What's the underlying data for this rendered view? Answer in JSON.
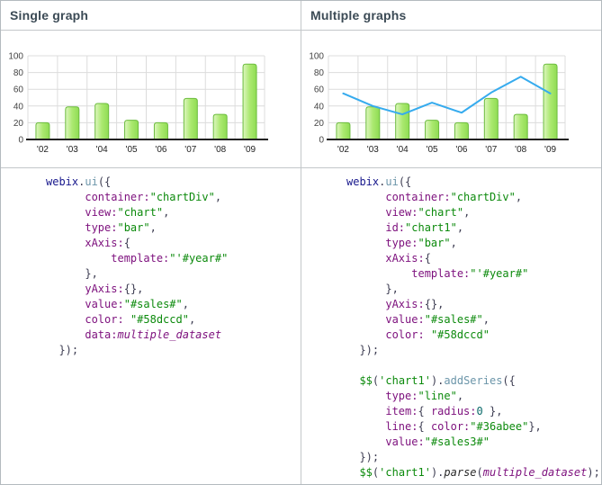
{
  "panels": [
    {
      "title": "Single graph",
      "code": [
        [
          [
            "kwd",
            "webix"
          ],
          [
            "pun",
            "."
          ],
          [
            "meth",
            "ui"
          ],
          [
            "pun",
            "({"
          ]
        ],
        [
          [
            "pln",
            "      "
          ],
          [
            "prop",
            "container:"
          ],
          [
            "str",
            "\"chartDiv\""
          ],
          [
            "pun",
            ","
          ]
        ],
        [
          [
            "pln",
            "      "
          ],
          [
            "prop",
            "view:"
          ],
          [
            "str",
            "\"chart\""
          ],
          [
            "pun",
            ","
          ]
        ],
        [
          [
            "pln",
            "      "
          ],
          [
            "prop",
            "type:"
          ],
          [
            "str",
            "\"bar\""
          ],
          [
            "pun",
            ","
          ]
        ],
        [
          [
            "pln",
            "      "
          ],
          [
            "prop",
            "xAxis:"
          ],
          [
            "pun",
            "{"
          ]
        ],
        [
          [
            "pln",
            "          "
          ],
          [
            "prop",
            "template:"
          ],
          [
            "str",
            "\"'#year#\""
          ]
        ],
        [
          [
            "pln",
            "      "
          ],
          [
            "pun",
            "},"
          ]
        ],
        [
          [
            "pln",
            "      "
          ],
          [
            "prop",
            "yAxis:"
          ],
          [
            "pun",
            "{},"
          ]
        ],
        [
          [
            "pln",
            "      "
          ],
          [
            "prop",
            "value:"
          ],
          [
            "str",
            "\"#sales#\""
          ],
          [
            "pun",
            ","
          ]
        ],
        [
          [
            "pln",
            "      "
          ],
          [
            "prop",
            "color: "
          ],
          [
            "str",
            "\"#58dccd\""
          ],
          [
            "pun",
            ","
          ]
        ],
        [
          [
            "pln",
            "      "
          ],
          [
            "prop",
            "data:"
          ],
          [
            "var",
            "multiple_dataset"
          ]
        ],
        [
          [
            "pln",
            "  "
          ],
          [
            "pun",
            "});"
          ]
        ]
      ]
    },
    {
      "title": "Multiple graphs",
      "code": [
        [
          [
            "kwd",
            "webix"
          ],
          [
            "pun",
            "."
          ],
          [
            "meth",
            "ui"
          ],
          [
            "pun",
            "({"
          ]
        ],
        [
          [
            "pln",
            "      "
          ],
          [
            "prop",
            "container:"
          ],
          [
            "str",
            "\"chartDiv\""
          ],
          [
            "pun",
            ","
          ]
        ],
        [
          [
            "pln",
            "      "
          ],
          [
            "prop",
            "view:"
          ],
          [
            "str",
            "\"chart\""
          ],
          [
            "pun",
            ","
          ]
        ],
        [
          [
            "pln",
            "      "
          ],
          [
            "prop",
            "id:"
          ],
          [
            "str",
            "\"chart1\""
          ],
          [
            "pun",
            ","
          ]
        ],
        [
          [
            "pln",
            "      "
          ],
          [
            "prop",
            "type:"
          ],
          [
            "str",
            "\"bar\""
          ],
          [
            "pun",
            ","
          ]
        ],
        [
          [
            "pln",
            "      "
          ],
          [
            "prop",
            "xAxis:"
          ],
          [
            "pun",
            "{"
          ]
        ],
        [
          [
            "pln",
            "          "
          ],
          [
            "prop",
            "template:"
          ],
          [
            "str",
            "\"'#year#\""
          ]
        ],
        [
          [
            "pln",
            "      "
          ],
          [
            "pun",
            "},"
          ]
        ],
        [
          [
            "pln",
            "      "
          ],
          [
            "prop",
            "yAxis:"
          ],
          [
            "pun",
            "{},"
          ]
        ],
        [
          [
            "pln",
            "      "
          ],
          [
            "prop",
            "value:"
          ],
          [
            "str",
            "\"#sales#\""
          ],
          [
            "pun",
            ","
          ]
        ],
        [
          [
            "pln",
            "      "
          ],
          [
            "prop",
            "color: "
          ],
          [
            "str",
            "\"#58dccd\""
          ]
        ],
        [
          [
            "pln",
            "  "
          ],
          [
            "pun",
            "});"
          ]
        ],
        [],
        [
          [
            "pln",
            "  "
          ],
          [
            "str",
            "$$"
          ],
          [
            "pun",
            "("
          ],
          [
            "str",
            "'chart1'"
          ],
          [
            "pun",
            ")."
          ],
          [
            "meth",
            "addSeries"
          ],
          [
            "pun",
            "({"
          ]
        ],
        [
          [
            "pln",
            "      "
          ],
          [
            "prop",
            "type:"
          ],
          [
            "str",
            "\"line\""
          ],
          [
            "pun",
            ","
          ]
        ],
        [
          [
            "pln",
            "      "
          ],
          [
            "prop",
            "item:"
          ],
          [
            "pun",
            "{ "
          ],
          [
            "prop",
            "radius:"
          ],
          [
            "lit",
            "0"
          ],
          [
            "pun",
            " },"
          ]
        ],
        [
          [
            "pln",
            "      "
          ],
          [
            "prop",
            "line:"
          ],
          [
            "pun",
            "{ "
          ],
          [
            "prop",
            "color:"
          ],
          [
            "str",
            "\"#36abee\""
          ],
          [
            "pun",
            "},"
          ]
        ],
        [
          [
            "pln",
            "      "
          ],
          [
            "prop",
            "value:"
          ],
          [
            "str",
            "\"#sales3#\""
          ]
        ],
        [
          [
            "pln",
            "  "
          ],
          [
            "pun",
            "});"
          ]
        ],
        [
          [
            "pln",
            "  "
          ],
          [
            "str",
            "$$"
          ],
          [
            "pun",
            "("
          ],
          [
            "str",
            "'chart1'"
          ],
          [
            "pun",
            ")."
          ],
          [
            "fn",
            "parse"
          ],
          [
            "pun",
            "("
          ],
          [
            "var",
            "multiple_dataset"
          ],
          [
            "pun",
            ");"
          ]
        ]
      ]
    }
  ],
  "chart_data": [
    {
      "type": "bar",
      "title": "Single graph",
      "categories": [
        "'02",
        "'03",
        "'04",
        "'05",
        "'06",
        "'07",
        "'08",
        "'09"
      ],
      "series": [
        {
          "name": "#sales#",
          "type": "bar",
          "color": "#8edc52",
          "values": [
            20,
            39,
            43,
            23,
            20,
            49,
            30,
            90
          ]
        }
      ],
      "xlabel": "",
      "ylabel": "",
      "ylim": [
        0,
        100
      ],
      "yticks": [
        0,
        20,
        40,
        60,
        80,
        100
      ],
      "grid": true,
      "legend": "none"
    },
    {
      "type": "bar+line",
      "title": "Multiple graphs",
      "categories": [
        "'02",
        "'03",
        "'04",
        "'05",
        "'06",
        "'07",
        "'08",
        "'09"
      ],
      "series": [
        {
          "name": "#sales#",
          "type": "bar",
          "color": "#8edc52",
          "values": [
            20,
            39,
            43,
            23,
            20,
            49,
            30,
            90
          ]
        },
        {
          "name": "#sales3#",
          "type": "line",
          "color": "#36abee",
          "values": [
            55,
            40,
            30,
            44,
            32,
            56,
            75,
            55
          ]
        }
      ],
      "xlabel": "",
      "ylabel": "",
      "ylim": [
        0,
        100
      ],
      "yticks": [
        0,
        20,
        40,
        60,
        80,
        100
      ],
      "grid": true,
      "legend": "none"
    }
  ],
  "colors": {
    "bar_gradient": [
      "#def6c0",
      "#abe970",
      "#8fdc53"
    ],
    "bar_stroke": "#6cbc3e",
    "line_series": "#36abee",
    "grid": "#dcdcdc",
    "axis": "#222222",
    "y_tick_text": "#444444",
    "x_tick_text": "#222222",
    "border": "#c3c7ca",
    "header_text": "#3b4a55"
  }
}
